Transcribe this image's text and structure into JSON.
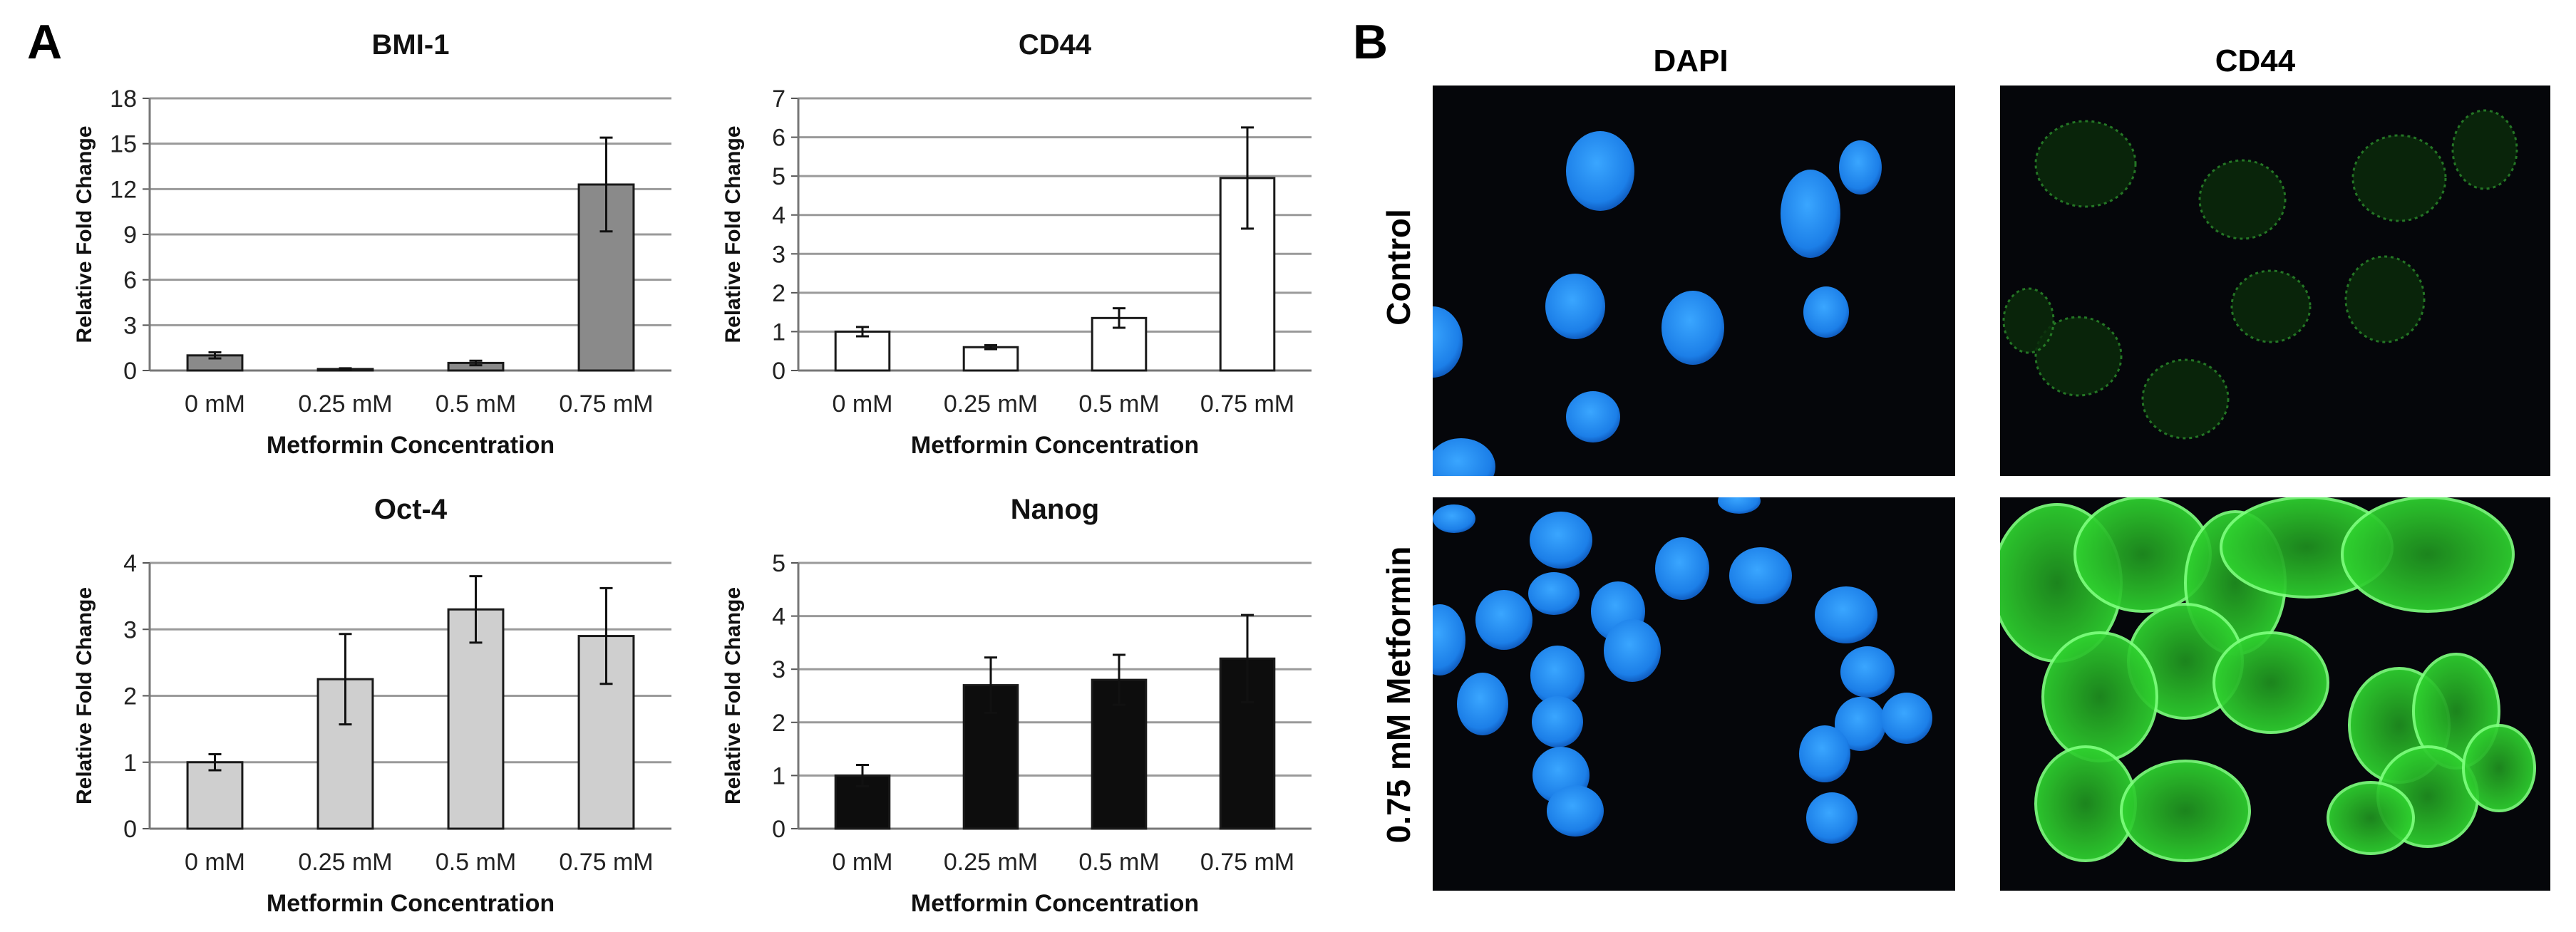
{
  "panel_a_label": "A",
  "panel_b_label": "B",
  "colors": {
    "bmi1_bar": "#8a8a8a",
    "cd44_bar": "#ffffff",
    "oct4_bar": "#cfcfcf",
    "nanog_bar": "#0d0d0d",
    "bar_stroke": "#1a1a1a",
    "grid": "#9a9a9a",
    "micro_bg": "#05060a",
    "dapi": "#1c7fe8",
    "cd44_stain": "#2fd12f"
  },
  "chart_data": [
    {
      "type": "bar",
      "title": "BMI-1",
      "categories": [
        "0 mM",
        "0.25 mM",
        "0.5 mM",
        "0.75 mM"
      ],
      "values": [
        1.0,
        0.1,
        0.5,
        12.3
      ],
      "errors": [
        0.2,
        0.05,
        0.15,
        3.1
      ],
      "xlabel": "Metformin Concentration",
      "ylabel": "Relative Fold Change",
      "ylim": [
        0,
        18
      ],
      "yticks": [
        "0",
        "3",
        "6",
        "9",
        "12",
        "15",
        "18"
      ],
      "grid": true
    },
    {
      "type": "bar",
      "title": "CD44",
      "categories": [
        "0 mM",
        "0.25 mM",
        "0.5 mM",
        "0.75 mM"
      ],
      "values": [
        1.0,
        0.6,
        1.35,
        4.95
      ],
      "errors": [
        0.12,
        0.05,
        0.25,
        1.3
      ],
      "xlabel": "Metformin Concentration",
      "ylabel": "Relative Fold Change",
      "ylim": [
        0,
        7
      ],
      "yticks": [
        "0",
        "1",
        "2",
        "3",
        "4",
        "5",
        "6",
        "7"
      ],
      "grid": true
    },
    {
      "type": "bar",
      "title": "Oct-4",
      "categories": [
        "0 mM",
        "0.25 mM",
        "0.5 mM",
        "0.75 mM"
      ],
      "values": [
        1.0,
        2.25,
        3.3,
        2.9
      ],
      "errors": [
        0.12,
        0.68,
        0.5,
        0.72
      ],
      "xlabel": "Metformin Concentration",
      "ylabel": "Relative Fold Change",
      "ylim": [
        0,
        4
      ],
      "yticks": [
        "0",
        "1",
        "2",
        "3",
        "4"
      ],
      "grid": true
    },
    {
      "type": "bar",
      "title": "Nanog",
      "categories": [
        "0 mM",
        "0.25 mM",
        "0.5 mM",
        "0.75 mM"
      ],
      "values": [
        1.0,
        2.7,
        2.8,
        3.2
      ],
      "errors": [
        0.2,
        0.52,
        0.47,
        0.82
      ],
      "xlabel": "Metformin Concentration",
      "ylabel": "Relative Fold Change",
      "ylim": [
        0,
        5
      ],
      "yticks": [
        "0",
        "1",
        "2",
        "3",
        "4",
        "5"
      ],
      "grid": true
    }
  ],
  "micrographs": {
    "column_headers": [
      "DAPI",
      "CD44"
    ],
    "row_labels": [
      "Control",
      "0.75 mM Metformin"
    ]
  }
}
